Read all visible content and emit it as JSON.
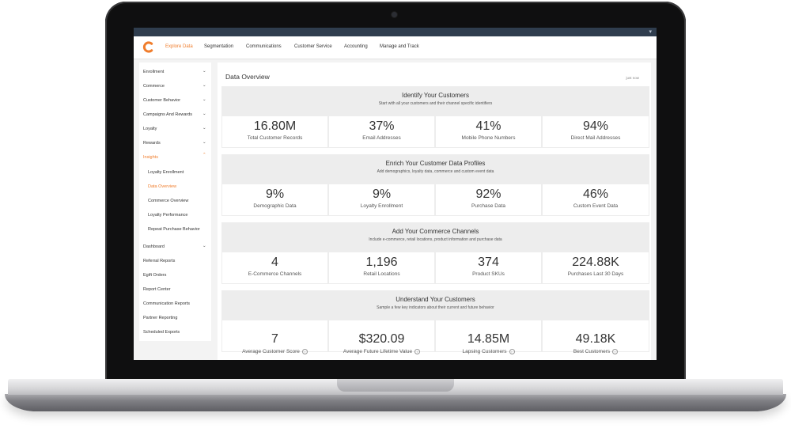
{
  "nav": {
    "items": [
      "Explore Data",
      "Segmentation",
      "Communications",
      "Customer Service",
      "Accounting",
      "Manage and Track"
    ]
  },
  "sidebar": {
    "items": [
      {
        "label": "Enrollment"
      },
      {
        "label": "Commerce"
      },
      {
        "label": "Customer Behavior"
      },
      {
        "label": "Campaigns And Rewards"
      },
      {
        "label": "Loyalty"
      },
      {
        "label": "Rewards"
      },
      {
        "label": "Insights"
      },
      {
        "label": "Loyalty Enrollment"
      },
      {
        "label": "Data Overview"
      },
      {
        "label": "Commerce Overview"
      },
      {
        "label": "Loyalty Performance"
      },
      {
        "label": "Repeat Purchase Behavior"
      },
      {
        "label": "Dashboard"
      },
      {
        "label": "Referral Reports"
      },
      {
        "label": "Egift Orders"
      },
      {
        "label": "Report Center"
      },
      {
        "label": "Communication Reports"
      },
      {
        "label": "Partner Reporting"
      },
      {
        "label": "Scheduled Exports"
      }
    ]
  },
  "main": {
    "title": "Data Overview",
    "link": "just now",
    "sections": [
      {
        "title": "Identify Your Customers",
        "subtitle": "Start with all your customers and their channel specific identifiers",
        "tiles": [
          {
            "value": "16.80M",
            "label": "Total Customer Records"
          },
          {
            "value": "37%",
            "label": "Email Addresses"
          },
          {
            "value": "41%",
            "label": "Mobile Phone Numbers"
          },
          {
            "value": "94%",
            "label": "Direct Mail Addresses"
          }
        ]
      },
      {
        "title": "Enrich Your Customer Data Profiles",
        "subtitle": "Add demographics, loyalty data, commerce and custom event data",
        "tiles": [
          {
            "value": "9%",
            "label": "Demographic Data"
          },
          {
            "value": "9%",
            "label": "Loyalty Enrollment"
          },
          {
            "value": "92%",
            "label": "Purchase Data"
          },
          {
            "value": "46%",
            "label": "Custom Event Data"
          }
        ]
      },
      {
        "title": "Add Your Commerce Channels",
        "subtitle": "Include e-commerce, retail locations, product information and purchase data",
        "tiles": [
          {
            "value": "4",
            "label": "E-Commerce Channels"
          },
          {
            "value": "1,196",
            "label": "Retail Locations"
          },
          {
            "value": "374",
            "label": "Product SKUs"
          },
          {
            "value": "224.88K",
            "label": "Purchases Last 30 Days"
          }
        ]
      },
      {
        "title": "Understand Your Customers",
        "subtitle": "Sample a few key indicators about their current and future behavior",
        "tiles": [
          {
            "value": "7",
            "label": "Average Customer Score"
          },
          {
            "value": "$320.09",
            "label": "Average Future Lifetime Value"
          },
          {
            "value": "14.85M",
            "label": "Lapsing Customers"
          },
          {
            "value": "49.18K",
            "label": "Best Customers"
          }
        ]
      }
    ]
  },
  "colors": {
    "accent": "#f07d2c",
    "topbar": "#2f3d4e"
  }
}
